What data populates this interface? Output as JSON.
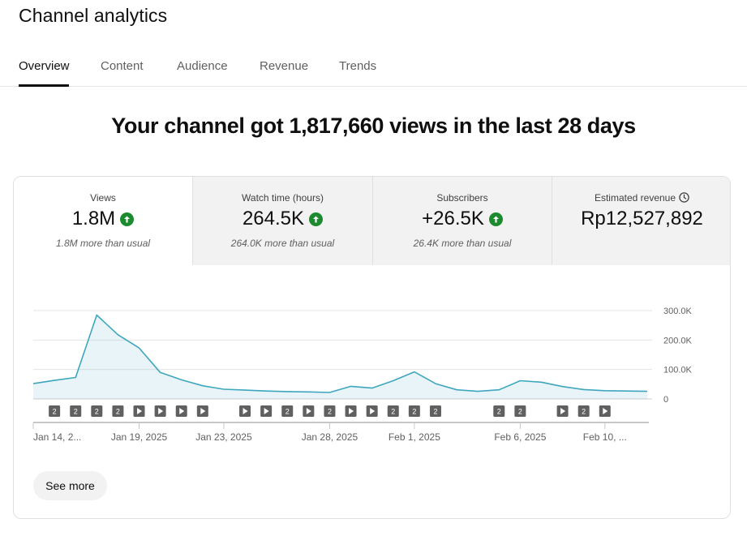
{
  "header": {
    "title": "Channel analytics"
  },
  "tabs": [
    {
      "label": "Overview",
      "active": true
    },
    {
      "label": "Content",
      "active": false
    },
    {
      "label": "Audience",
      "active": false
    },
    {
      "label": "Revenue",
      "active": false
    },
    {
      "label": "Trends",
      "active": false
    }
  ],
  "headline": "Your channel got 1,817,660 views in the last 28 days",
  "metrics": [
    {
      "label": "Views",
      "value": "1.8M",
      "trend": "up",
      "note": "1.8M more than usual"
    },
    {
      "label": "Watch time (hours)",
      "value": "264.5K",
      "trend": "up",
      "note": "264.0K more than usual"
    },
    {
      "label": "Subscribers",
      "value": "+26.5K",
      "trend": "up",
      "note": "26.4K more than usual"
    },
    {
      "label": "Estimated revenue",
      "value": "Rp12,527,892",
      "icon": "clock-icon"
    }
  ],
  "see_more_label": "See more",
  "colors": {
    "accent": "#3ea6be",
    "trend_up": "#1c8a2e",
    "marker": "#606060"
  },
  "chart_data": {
    "type": "area",
    "x": [
      "Jan 14",
      "Jan 15",
      "Jan 16",
      "Jan 17",
      "Jan 18",
      "Jan 19",
      "Jan 20",
      "Jan 21",
      "Jan 22",
      "Jan 23",
      "Jan 24",
      "Jan 25",
      "Jan 26",
      "Jan 27",
      "Jan 28",
      "Jan 29",
      "Jan 30",
      "Jan 31",
      "Feb 1",
      "Feb 2",
      "Feb 3",
      "Feb 4",
      "Feb 5",
      "Feb 6",
      "Feb 7",
      "Feb 8",
      "Feb 9",
      "Feb 10",
      "Feb 11",
      "Feb 12"
    ],
    "values": [
      52000,
      63000,
      73000,
      285000,
      218000,
      173000,
      90000,
      65000,
      45000,
      33000,
      30000,
      27000,
      25000,
      24000,
      22000,
      43000,
      37000,
      62000,
      92000,
      52000,
      31000,
      26000,
      31000,
      62000,
      57000,
      42000,
      32000,
      28000,
      27000,
      26000
    ],
    "xlabels": [
      "Jan 14, 2...",
      "Jan 19, 2025",
      "Jan 23, 2025",
      "Jan 28, 2025",
      "Feb 1, 2025",
      "Feb 6, 2025",
      "Feb 10, ..."
    ],
    "xlabel_indices": [
      0,
      5,
      9,
      14,
      18,
      23,
      27
    ],
    "ytick_labels": [
      "300.0K",
      "200.0K",
      "100.0K",
      "0"
    ],
    "yticks": [
      300000,
      200000,
      100000,
      0
    ],
    "ylim": [
      0,
      300000
    ],
    "markers": [
      {
        "i": 1,
        "type": "count",
        "label": "2"
      },
      {
        "i": 2,
        "type": "count",
        "label": "2"
      },
      {
        "i": 3,
        "type": "count",
        "label": "2"
      },
      {
        "i": 4,
        "type": "count",
        "label": "2"
      },
      {
        "i": 5,
        "type": "video",
        "label": ""
      },
      {
        "i": 6,
        "type": "video",
        "label": ""
      },
      {
        "i": 7,
        "type": "video",
        "label": ""
      },
      {
        "i": 8,
        "type": "video",
        "label": ""
      },
      {
        "i": 10,
        "type": "video",
        "label": ""
      },
      {
        "i": 11,
        "type": "video",
        "label": ""
      },
      {
        "i": 12,
        "type": "count",
        "label": "2"
      },
      {
        "i": 13,
        "type": "video",
        "label": ""
      },
      {
        "i": 14,
        "type": "count",
        "label": "2"
      },
      {
        "i": 15,
        "type": "video",
        "label": ""
      },
      {
        "i": 16,
        "type": "video",
        "label": ""
      },
      {
        "i": 17,
        "type": "count",
        "label": "2"
      },
      {
        "i": 18,
        "type": "count",
        "label": "2"
      },
      {
        "i": 19,
        "type": "count",
        "label": "2"
      },
      {
        "i": 22,
        "type": "count",
        "label": "2"
      },
      {
        "i": 23,
        "type": "count",
        "label": "2"
      },
      {
        "i": 25,
        "type": "video",
        "label": ""
      },
      {
        "i": 26,
        "type": "count",
        "label": "2"
      },
      {
        "i": 27,
        "type": "video",
        "label": ""
      }
    ]
  }
}
